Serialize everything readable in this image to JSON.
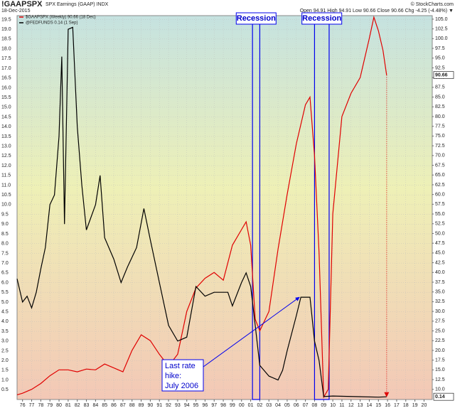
{
  "chart_data": {
    "type": "line",
    "title": "!GAAPSPX",
    "subtitle": "SPX Earnings (GAAP) INDX",
    "date": "18-Dec-2015",
    "quote": "Open 94.91  High 94.91  Low 90.66  Close 90.66  Chg -4.25 (-4.48%) ▼",
    "credit": "© StockCharts.com",
    "grid": true,
    "xlim": [
      1975.4,
      2020.9
    ],
    "ylim": [
      0,
      19.7
    ],
    "y2lim": [
      7.4,
      105.9
    ],
    "xticks": [
      {
        "value": 1976,
        "label": "76"
      },
      {
        "value": 1977,
        "label": "77"
      },
      {
        "value": 1978,
        "label": "78"
      },
      {
        "value": 1979,
        "label": "79"
      },
      {
        "value": 1980,
        "label": "80"
      },
      {
        "value": 1981,
        "label": "81"
      },
      {
        "value": 1982,
        "label": "82"
      },
      {
        "value": 1983,
        "label": "83"
      },
      {
        "value": 1984,
        "label": "84"
      },
      {
        "value": 1985,
        "label": "85"
      },
      {
        "value": 1986,
        "label": "86"
      },
      {
        "value": 1987,
        "label": "87"
      },
      {
        "value": 1988,
        "label": "88"
      },
      {
        "value": 1989,
        "label": "89"
      },
      {
        "value": 1990,
        "label": "90"
      },
      {
        "value": 1991,
        "label": "91"
      },
      {
        "value": 1992,
        "label": "92"
      },
      {
        "value": 1993,
        "label": "93"
      },
      {
        "value": 1994,
        "label": "94"
      },
      {
        "value": 1995,
        "label": "95"
      },
      {
        "value": 1996,
        "label": "96"
      },
      {
        "value": 1997,
        "label": "97"
      },
      {
        "value": 1998,
        "label": "98"
      },
      {
        "value": 1999,
        "label": "99"
      },
      {
        "value": 2000,
        "label": "00"
      },
      {
        "value": 2001,
        "label": "01"
      },
      {
        "value": 2002,
        "label": "02"
      },
      {
        "value": 2003,
        "label": "03"
      },
      {
        "value": 2004,
        "label": "04"
      },
      {
        "value": 2005,
        "label": "05"
      },
      {
        "value": 2006,
        "label": "06"
      },
      {
        "value": 2007,
        "label": "07"
      },
      {
        "value": 2008,
        "label": "08"
      },
      {
        "value": 2009,
        "label": "09"
      },
      {
        "value": 2010,
        "label": "10"
      },
      {
        "value": 2011,
        "label": "11"
      },
      {
        "value": 2012,
        "label": "12"
      },
      {
        "value": 2013,
        "label": "13"
      },
      {
        "value": 2014,
        "label": "14"
      },
      {
        "value": 2015,
        "label": "15"
      },
      {
        "value": 2016,
        "label": "16"
      },
      {
        "value": 2017,
        "label": "17"
      },
      {
        "value": 2018,
        "label": "18"
      },
      {
        "value": 2019,
        "label": "19"
      },
      {
        "value": 2020,
        "label": "20"
      }
    ],
    "yticks": [
      0.5,
      {
        "value": 1,
        "label": "1.0"
      },
      1.5,
      {
        "value": 2,
        "label": "2.0"
      },
      2.5,
      {
        "value": 3,
        "label": "3.0"
      },
      3.5,
      {
        "value": 4,
        "label": "4.0"
      },
      4.5,
      {
        "value": 5,
        "label": "5.0"
      },
      5.5,
      {
        "value": 6,
        "label": "6.0"
      },
      6.5,
      {
        "value": 7,
        "label": "7.0"
      },
      7.5,
      {
        "value": 8,
        "label": "8.0"
      },
      8.5,
      {
        "value": 9,
        "label": "9.0"
      },
      9.5,
      {
        "value": 10,
        "label": "10.0"
      },
      10.5,
      {
        "value": 11,
        "label": "11.0"
      },
      11.5,
      {
        "value": 12,
        "label": "12.0"
      },
      12.5,
      {
        "value": 13,
        "label": "13.0"
      },
      13.5,
      {
        "value": 14,
        "label": "14.0"
      },
      14.5,
      {
        "value": 15,
        "label": "15.0"
      },
      15.5,
      {
        "value": 16,
        "label": "16.0"
      },
      16.5,
      {
        "value": 17,
        "label": "17.0"
      },
      17.5,
      {
        "value": 18,
        "label": "18.0"
      },
      18.5,
      {
        "value": 19,
        "label": "19.0"
      },
      19.5
    ],
    "y2ticks": [
      {
        "value": 10,
        "label": "10.0"
      },
      12.5,
      {
        "value": 15,
        "label": "15.0"
      },
      17.5,
      {
        "value": 20,
        "label": "20.0"
      },
      22.5,
      {
        "value": 25,
        "label": "25.0"
      },
      27.5,
      {
        "value": 30,
        "label": "30.0"
      },
      32.5,
      {
        "value": 35,
        "label": "35.0"
      },
      37.5,
      {
        "value": 40,
        "label": "40.0"
      },
      42.5,
      {
        "value": 45,
        "label": "45.0"
      },
      47.5,
      {
        "value": 50,
        "label": "50.0"
      },
      52.5,
      {
        "value": 55,
        "label": "55.0"
      },
      57.5,
      {
        "value": 60,
        "label": "60.0"
      },
      62.5,
      {
        "value": 65,
        "label": "65.0"
      },
      67.5,
      {
        "value": 70,
        "label": "70.0"
      },
      72.5,
      {
        "value": 75,
        "label": "75.0"
      },
      77.5,
      {
        "value": 80,
        "label": "80.0"
      },
      82.5,
      {
        "value": 85,
        "label": "85.0"
      },
      87.5,
      {
        "value": 90,
        "label": "90.0"
      },
      92.5,
      {
        "value": 95,
        "label": "95.0"
      },
      97.5,
      {
        "value": 100,
        "label": "100.0"
      },
      102.5,
      {
        "value": 105,
        "label": "105.0"
      }
    ],
    "series": [
      {
        "name": "$GAAPSPX (Weekly) 90.66 (18 Dec)",
        "color": "#e00000",
        "axis": "y2",
        "x": [
          1975.4,
          1976,
          1977,
          1978,
          1979,
          1980,
          1981,
          1982,
          1983,
          1984,
          1985,
          1986,
          1987,
          1988,
          1989,
          1990,
          1991,
          1992,
          1993,
          1994,
          1995,
          1996,
          1997,
          1998,
          1999,
          2000,
          2000.5,
          2001,
          2001.5,
          2002,
          2003,
          2004,
          2005,
          2006,
          2007,
          2007.5,
          2008,
          2008.5,
          2009,
          2009.5,
          2010,
          2011,
          2012,
          2013,
          2014,
          2014.5,
          2015,
          2015.5,
          2015.9
        ],
        "values": [
          8.6,
          9.0,
          10.0,
          11.5,
          13.5,
          15.0,
          15.0,
          14.5,
          15.2,
          15.0,
          16.5,
          15.5,
          14.5,
          20.0,
          24.0,
          22.5,
          19.0,
          16.0,
          19.0,
          30.0,
          36.0,
          38.5,
          40.0,
          38.0,
          47.0,
          51.0,
          53.0,
          47.0,
          28.0,
          25.0,
          30.0,
          46.0,
          60.0,
          73.0,
          83.0,
          85.0,
          70.0,
          45.0,
          8.0,
          10.0,
          55.0,
          80.0,
          86.0,
          90.0,
          100.0,
          105.5,
          102.0,
          97.0,
          90.66
        ]
      },
      {
        "name": "@FEDFUNDS 0.14 (1 Sep)",
        "color": "#000000",
        "axis": "y",
        "x": [
          1975.4,
          1976,
          1976.5,
          1977,
          1977.5,
          1978,
          1978.5,
          1979,
          1979.5,
          1980,
          1980.3,
          1980.6,
          1981,
          1981.5,
          1982,
          1982.5,
          1983,
          1984,
          1984.5,
          1985,
          1986,
          1986.8,
          1987.5,
          1988.5,
          1989.3,
          1990,
          1991,
          1992,
          1993,
          1994,
          1995,
          1996,
          1997,
          1998.5,
          1999,
          2000,
          2000.5,
          2001,
          2001.5,
          2002,
          2003,
          2004,
          2004.5,
          2005,
          2006,
          2006.5,
          2007.5,
          2008,
          2008.5,
          2009,
          2010,
          2015,
          2015.9
        ],
        "values": [
          6.2,
          5.0,
          5.3,
          4.7,
          5.5,
          6.7,
          7.8,
          10.0,
          10.5,
          13.5,
          17.6,
          9.0,
          19.0,
          19.1,
          14.0,
          11.0,
          8.7,
          10.0,
          11.5,
          8.3,
          7.2,
          6.0,
          6.8,
          7.8,
          9.8,
          8.2,
          6.0,
          3.8,
          3.0,
          3.2,
          5.8,
          5.3,
          5.5,
          5.5,
          4.8,
          6.0,
          6.5,
          5.8,
          3.8,
          1.75,
          1.2,
          1.0,
          1.5,
          2.5,
          4.3,
          5.25,
          5.25,
          3.0,
          2.0,
          0.15,
          0.18,
          0.12,
          0.14
        ]
      }
    ],
    "recessions": [
      {
        "label": "Recession",
        "start": 2001.2,
        "end": 2002.0
      },
      {
        "label": "Recession",
        "start": 2008.0,
        "end": 2009.6
      }
    ],
    "annotation": {
      "lines": [
        "Last rate",
        "hike:",
        "July 2006"
      ],
      "x": 2006.5,
      "y": 5.25
    }
  }
}
